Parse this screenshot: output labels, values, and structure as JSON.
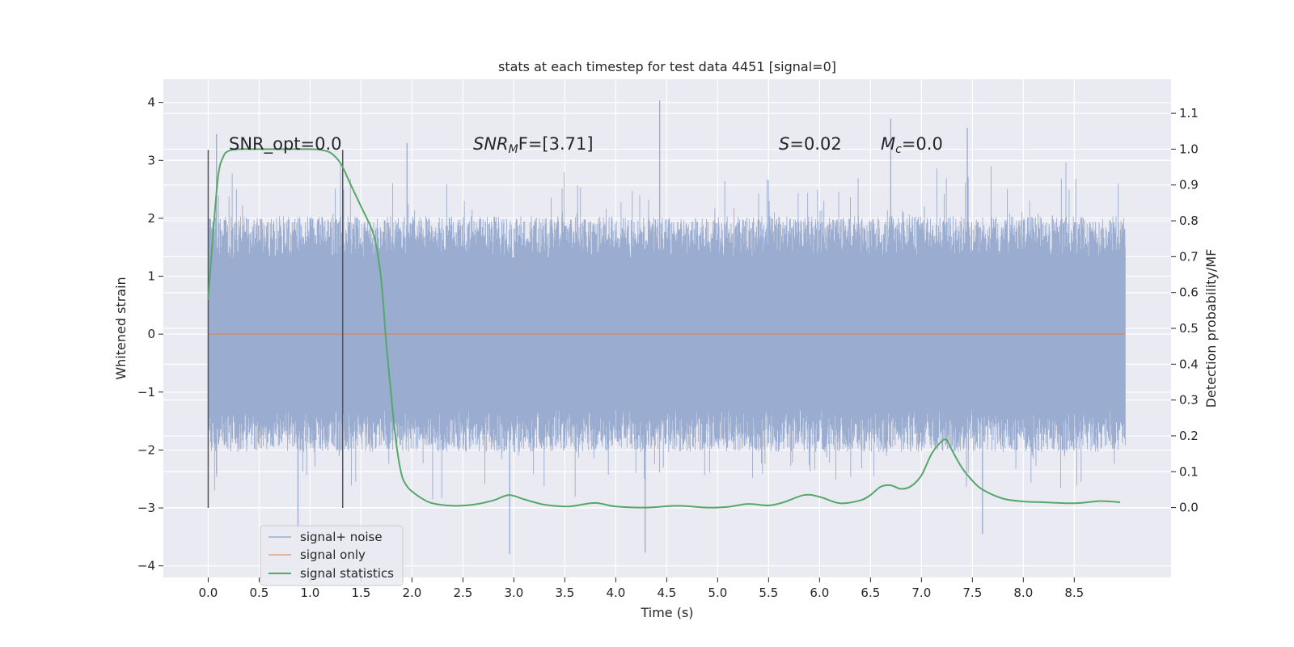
{
  "chart_data": {
    "type": "line",
    "title": "stats at each timestep for test data 4451 [signal=0]",
    "xlabel": "Time (s)",
    "ylabel_left": "Whitened strain",
    "ylabel_right": "Detection probability/MF",
    "xlim": [
      -0.44,
      9.45
    ],
    "ylim_left": [
      -4.2,
      4.4
    ],
    "ylim_right": [
      -0.195,
      1.195
    ],
    "x_ticks": [
      0.0,
      0.5,
      1.0,
      1.5,
      2.0,
      2.5,
      3.0,
      3.5,
      4.0,
      4.5,
      5.0,
      5.5,
      6.0,
      6.5,
      7.0,
      7.5,
      8.0,
      8.5
    ],
    "x_tick_labels": [
      "0.0",
      "0.5",
      "1.0",
      "1.5",
      "2.0",
      "2.5",
      "3.0",
      "3.5",
      "4.0",
      "4.5",
      "5.0",
      "5.5",
      "6.0",
      "6.5",
      "7.0",
      "7.5",
      "8.0",
      "8.5"
    ],
    "y_left_ticks": [
      4,
      3,
      2,
      1,
      0,
      -1,
      -2,
      -3,
      -4
    ],
    "y_left_tick_labels": [
      "4",
      "3",
      "2",
      "1",
      "0",
      "−1",
      "−2",
      "−3",
      "−4"
    ],
    "y_right_ticks": [
      1.1,
      1.0,
      0.9,
      0.8,
      0.7,
      0.6,
      0.5,
      0.4,
      0.3,
      0.2,
      0.1,
      0.0
    ],
    "y_right_tick_labels": [
      "1.1",
      "1.0",
      "0.9",
      "0.8",
      "0.7",
      "0.6",
      "0.5",
      "0.4",
      "0.3",
      "0.2",
      "0.1",
      "0.0"
    ],
    "grid": true,
    "legend_position": "lower-left",
    "colors": {
      "background": "#eaeaf2",
      "grid": "#ffffff",
      "signal_noise": "#9aaccf",
      "signal_only": "#dd8452",
      "statistics": "#55a868",
      "vline": "#555555"
    },
    "series": [
      {
        "name": "signal+ noise",
        "axis": "left",
        "x_range": [
          0.0,
          9.0
        ],
        "description_values": {
          "core_band": [
            -1.3,
            1.3
          ],
          "typical_extent": [
            -2.0,
            2.0
          ],
          "notable_peaks": [
            [
              0.08,
              3.45
            ],
            [
              1.95,
              3.3
            ],
            [
              4.43,
              4.03
            ],
            [
              6.7,
              3.72
            ],
            [
              7.45,
              3.56
            ],
            [
              2.96,
              -3.8
            ],
            [
              4.29,
              -3.77
            ],
            [
              7.6,
              -3.45
            ],
            [
              0.88,
              -3.4
            ]
          ]
        }
      },
      {
        "name": "signal only",
        "axis": "left",
        "x": [
          0.0,
          9.0
        ],
        "y": [
          0.0,
          0.0
        ]
      },
      {
        "name": "signal statistics",
        "axis": "right",
        "x": [
          0.0,
          0.05,
          0.1,
          0.15,
          0.2,
          0.3,
          0.5,
          0.7,
          0.9,
          1.0,
          1.1,
          1.2,
          1.3,
          1.4,
          1.5,
          1.6,
          1.65,
          1.7,
          1.75,
          1.8,
          1.85,
          1.9,
          1.95,
          2.0,
          2.1,
          2.2,
          2.4,
          2.6,
          2.8,
          2.95,
          3.1,
          3.3,
          3.5,
          3.6,
          3.8,
          4.0,
          4.3,
          4.6,
          4.9,
          5.1,
          5.3,
          5.5,
          5.65,
          5.85,
          6.0,
          6.2,
          6.4,
          6.5,
          6.6,
          6.7,
          6.8,
          6.9,
          7.0,
          7.1,
          7.2,
          7.25,
          7.3,
          7.4,
          7.5,
          7.6,
          7.8,
          8.0,
          8.2,
          8.5,
          8.75,
          8.95
        ],
        "y": [
          0.58,
          0.77,
          0.93,
          0.98,
          0.995,
          1.0,
          1.0,
          1.0,
          1.0,
          1.0,
          0.998,
          0.99,
          0.96,
          0.9,
          0.84,
          0.78,
          0.73,
          0.63,
          0.45,
          0.3,
          0.17,
          0.09,
          0.06,
          0.045,
          0.025,
          0.012,
          0.005,
          0.008,
          0.02,
          0.035,
          0.023,
          0.008,
          0.003,
          0.005,
          0.013,
          0.003,
          0.0,
          0.005,
          0.0,
          0.002,
          0.01,
          0.006,
          0.015,
          0.035,
          0.03,
          0.012,
          0.02,
          0.035,
          0.058,
          0.062,
          0.052,
          0.06,
          0.09,
          0.15,
          0.185,
          0.188,
          0.16,
          0.11,
          0.075,
          0.05,
          0.025,
          0.017,
          0.015,
          0.012,
          0.018,
          0.015
        ]
      }
    ],
    "vertical_lines": [
      0.0,
      1.32
    ],
    "annotations": {
      "snr_opt": "SNR_opt=0.0",
      "snr_mf_prefix": "SNR",
      "snr_mf_sub": "M",
      "snr_mf_suffix": "F=[3.71]",
      "s_label": "S",
      "s_value": "=0.02",
      "mc_label": "M",
      "mc_sub": "c",
      "mc_value": "=0.0"
    }
  }
}
